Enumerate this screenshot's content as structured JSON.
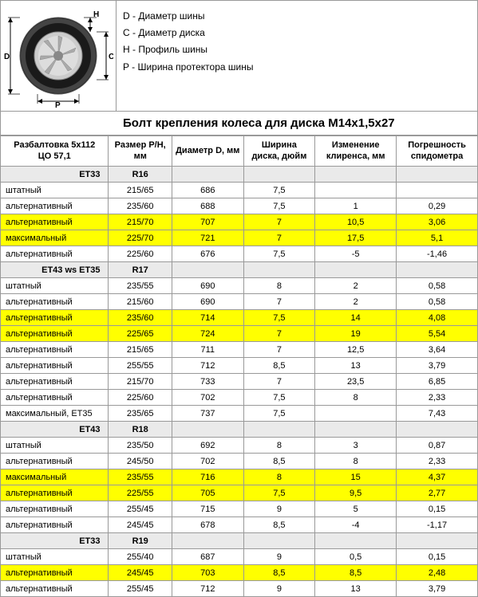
{
  "legend": {
    "d": "D - Диаметр шины",
    "c": "C - Диаметр диска",
    "h": "H - Профиль шины",
    "p": "P - Ширина протектора шины"
  },
  "bolt_title": "Болт крепления колеса для диска М14х1,5х27",
  "header": {
    "c1a": "Разбалтовка 5х112",
    "c1b": "ЦО 57,1",
    "c2": "Размер Р/Н, мм",
    "c3": "Диаметр D, мм",
    "c4": "Ширина диска, дюйм",
    "c5": "Изменение клиренса, мм",
    "c6": "Погрешность спидометра"
  },
  "rows": [
    {
      "t": "section",
      "label": "ET33",
      "size": "R16"
    },
    {
      "t": "data",
      "label": "штатный",
      "size": "215/65",
      "d": "686",
      "w": "7,5",
      "cl": "",
      "sp": ""
    },
    {
      "t": "data",
      "label": "альтернативный",
      "size": "235/60",
      "d": "688",
      "w": "7,5",
      "cl": "1",
      "sp": "0,29"
    },
    {
      "t": "yellow",
      "label": "альтернативный",
      "size": "215/70",
      "d": "707",
      "w": "7",
      "cl": "10,5",
      "sp": "3,06"
    },
    {
      "t": "yellow",
      "label": "максимальный",
      "size": "225/70",
      "d": "721",
      "w": "7",
      "cl": "17,5",
      "sp": "5,1"
    },
    {
      "t": "data",
      "label": "альтернативный",
      "size": "225/60",
      "d": "676",
      "w": "7,5",
      "cl": "-5",
      "sp": "-1,46"
    },
    {
      "t": "section",
      "label": "ET43 ws ET35",
      "size": "R17"
    },
    {
      "t": "data",
      "label": "штатный",
      "size": "235/55",
      "d": "690",
      "w": "8",
      "cl": "2",
      "sp": "0,58"
    },
    {
      "t": "data",
      "label": "альтернативный",
      "size": "215/60",
      "d": "690",
      "w": "7",
      "cl": "2",
      "sp": "0,58"
    },
    {
      "t": "yellow",
      "label": "альтернативный",
      "size": "235/60",
      "d": "714",
      "w": "7,5",
      "cl": "14",
      "sp": "4,08"
    },
    {
      "t": "yellow",
      "label": "альтернативный",
      "size": "225/65",
      "d": "724",
      "w": "7",
      "cl": "19",
      "sp": "5,54"
    },
    {
      "t": "data",
      "label": "альтернативный",
      "size": "215/65",
      "d": "711",
      "w": "7",
      "cl": "12,5",
      "sp": "3,64"
    },
    {
      "t": "data",
      "label": "альтернативный",
      "size": "255/55",
      "d": "712",
      "w": "8,5",
      "cl": "13",
      "sp": "3,79"
    },
    {
      "t": "data",
      "label": "альтернативный",
      "size": "215/70",
      "d": "733",
      "w": "7",
      "cl": "23,5",
      "sp": "6,85"
    },
    {
      "t": "data",
      "label": "альтернативный",
      "size": "225/60",
      "d": "702",
      "w": "7,5",
      "cl": "8",
      "sp": "2,33"
    },
    {
      "t": "data",
      "label": "максимальный, ET35",
      "size": "235/65",
      "d": "737",
      "w": "7,5",
      "cl": "",
      "sp": "7,43"
    },
    {
      "t": "section",
      "label": "ET43",
      "size": "R18"
    },
    {
      "t": "data",
      "label": "штатный",
      "size": "235/50",
      "d": "692",
      "w": "8",
      "cl": "3",
      "sp": "0,87"
    },
    {
      "t": "data",
      "label": "альтернативный",
      "size": "245/50",
      "d": "702",
      "w": "8,5",
      "cl": "8",
      "sp": "2,33"
    },
    {
      "t": "yellow",
      "label": "максимальный",
      "size": "235/55",
      "d": "716",
      "w": "8",
      "cl": "15",
      "sp": "4,37"
    },
    {
      "t": "yellow",
      "label": "альтернативный",
      "size": "225/55",
      "d": "705",
      "w": "7,5",
      "cl": "9,5",
      "sp": "2,77"
    },
    {
      "t": "data",
      "label": "альтернативный",
      "size": "255/45",
      "d": "715",
      "w": "9",
      "cl": "5",
      "sp": "0,15"
    },
    {
      "t": "data",
      "label": "альтернативный",
      "size": "245/45",
      "d": "678",
      "w": "8,5",
      "cl": "-4",
      "sp": "-1,17"
    },
    {
      "t": "section",
      "label": "ET33",
      "size": "R19"
    },
    {
      "t": "data",
      "label": "штатный",
      "size": "255/40",
      "d": "687",
      "w": "9",
      "cl": "0,5",
      "sp": "0,15"
    },
    {
      "t": "yellow",
      "label": "альтернативный",
      "size": "245/45",
      "d": "703",
      "w": "8,5",
      "cl": "8,5",
      "sp": "2,48"
    },
    {
      "t": "data",
      "label": "альтернативный",
      "size": "255/45",
      "d": "712",
      "w": "9",
      "cl": "13",
      "sp": "3,79"
    }
  ],
  "style": {
    "highlight": "#ffff00",
    "section_bg": "#eaeaea",
    "border": "#999999",
    "font_size_table": 11,
    "font_size_legend": 12,
    "font_size_title": 15
  }
}
